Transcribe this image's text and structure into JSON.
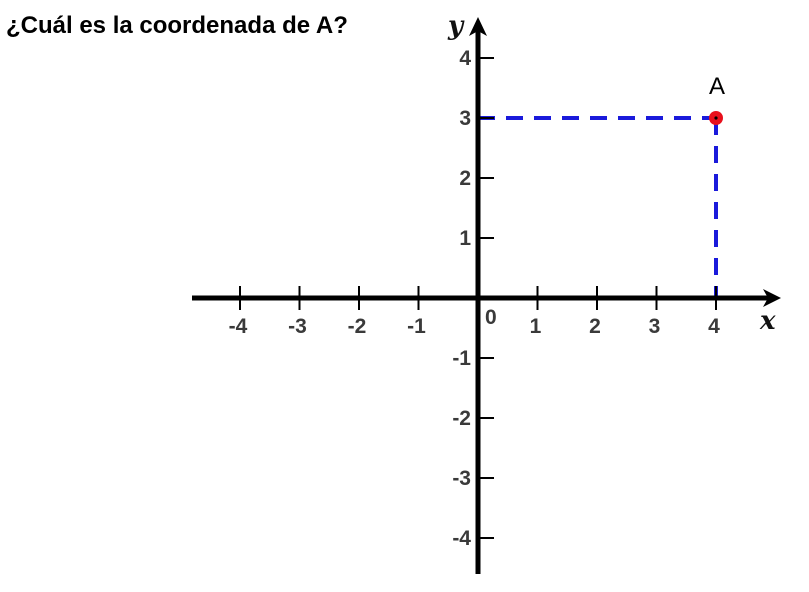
{
  "question": "¿Cuál es la coordenada de A?",
  "chart_data": {
    "type": "scatter",
    "xlabel": "x",
    "ylabel": "y",
    "xlim": [
      -4,
      4
    ],
    "ylim": [
      -4,
      4
    ],
    "x_ticks": [
      -4,
      -3,
      -2,
      -1,
      1,
      2,
      3,
      4
    ],
    "y_ticks": [
      -4,
      -3,
      -2,
      -1,
      1,
      2,
      3,
      4
    ],
    "origin_label": "0",
    "points": [
      {
        "label": "A",
        "x": 4,
        "y": 3,
        "color": "#e8101c"
      }
    ],
    "guide_line_color": "#1a1adb",
    "axis_color": "#000000"
  }
}
